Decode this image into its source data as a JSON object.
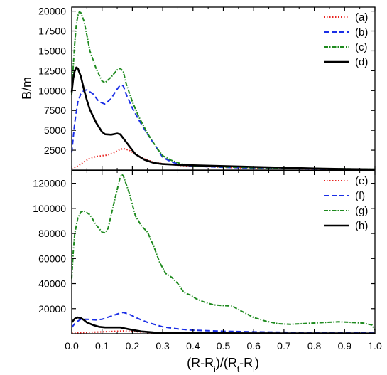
{
  "colors": {
    "red": "#e8231f",
    "blue": "#1a2ee6",
    "green": "#1e8a1e",
    "black": "#000000"
  },
  "chart_data": [
    {
      "type": "line",
      "xlabel": "",
      "ylabel": "B/m",
      "xlim": [
        0,
        1
      ],
      "ylim": [
        0,
        20500
      ],
      "yticks": [
        2500,
        5000,
        7500,
        10000,
        12500,
        15000,
        17500,
        20000
      ],
      "yticklabels": [
        "2500",
        "5000",
        "7500",
        "10000",
        "12500",
        "15000",
        "17500",
        "20000"
      ],
      "legend": "top-right",
      "series": [
        {
          "name": "(a)",
          "color": "red",
          "dash": "dotted",
          "points": [
            [
              0,
              150
            ],
            [
              0.02,
              500
            ],
            [
              0.04,
              1000
            ],
            [
              0.06,
              1500
            ],
            [
              0.08,
              1700
            ],
            [
              0.1,
              1800
            ],
            [
              0.12,
              1900
            ],
            [
              0.14,
              2200
            ],
            [
              0.16,
              2600
            ],
            [
              0.17,
              2700
            ],
            [
              0.19,
              2500
            ],
            [
              0.21,
              2000
            ],
            [
              0.24,
              1400
            ],
            [
              0.27,
              1000
            ],
            [
              0.3,
              800
            ],
            [
              0.35,
              600
            ],
            [
              0.4,
              500
            ],
            [
              0.5,
              350
            ],
            [
              0.6,
              250
            ],
            [
              0.7,
              200
            ],
            [
              0.8,
              150
            ],
            [
              0.9,
              100
            ],
            [
              1.0,
              80
            ]
          ]
        },
        {
          "name": "(b)",
          "color": "blue",
          "dash": "dashed",
          "points": [
            [
              0,
              2200
            ],
            [
              0.01,
              6000
            ],
            [
              0.02,
              8500
            ],
            [
              0.03,
              9600
            ],
            [
              0.04,
              10000
            ],
            [
              0.05,
              10100
            ],
            [
              0.07,
              9600
            ],
            [
              0.09,
              8600
            ],
            [
              0.11,
              8300
            ],
            [
              0.13,
              9000
            ],
            [
              0.15,
              10200
            ],
            [
              0.16,
              10700
            ],
            [
              0.17,
              10600
            ],
            [
              0.18,
              9500
            ],
            [
              0.2,
              7800
            ],
            [
              0.22,
              6400
            ],
            [
              0.25,
              4500
            ],
            [
              0.28,
              2800
            ],
            [
              0.3,
              1600
            ],
            [
              0.33,
              1000
            ],
            [
              0.36,
              700
            ],
            [
              0.4,
              500
            ],
            [
              0.5,
              350
            ],
            [
              0.6,
              250
            ],
            [
              0.7,
              200
            ],
            [
              0.8,
              150
            ],
            [
              0.9,
              100
            ],
            [
              1.0,
              80
            ]
          ]
        },
        {
          "name": "(c)",
          "color": "green",
          "dash": "dashdot",
          "points": [
            [
              0,
              9500
            ],
            [
              0.005,
              13000
            ],
            [
              0.01,
              16000
            ],
            [
              0.015,
              18200
            ],
            [
              0.02,
              19400
            ],
            [
              0.025,
              19900
            ],
            [
              0.03,
              19800
            ],
            [
              0.04,
              18800
            ],
            [
              0.05,
              17000
            ],
            [
              0.06,
              15000
            ],
            [
              0.08,
              12800
            ],
            [
              0.1,
              11200
            ],
            [
              0.11,
              11000
            ],
            [
              0.13,
              11700
            ],
            [
              0.15,
              12600
            ],
            [
              0.16,
              12800
            ],
            [
              0.17,
              12400
            ],
            [
              0.18,
              10800
            ],
            [
              0.2,
              8600
            ],
            [
              0.22,
              6800
            ],
            [
              0.25,
              4600
            ],
            [
              0.28,
              2800
            ],
            [
              0.3,
              1800
            ],
            [
              0.33,
              1200
            ],
            [
              0.36,
              800
            ],
            [
              0.4,
              550
            ],
            [
              0.5,
              400
            ],
            [
              0.6,
              300
            ],
            [
              0.7,
              250
            ],
            [
              0.8,
              200
            ],
            [
              0.9,
              150
            ],
            [
              1.0,
              100
            ]
          ]
        },
        {
          "name": "(d)",
          "color": "black",
          "dash": "solid",
          "points": [
            [
              0,
              9800
            ],
            [
              0.005,
              11500
            ],
            [
              0.01,
              12500
            ],
            [
              0.015,
              12900
            ],
            [
              0.02,
              12800
            ],
            [
              0.03,
              11800
            ],
            [
              0.04,
              10200
            ],
            [
              0.05,
              8800
            ],
            [
              0.06,
              7600
            ],
            [
              0.08,
              6000
            ],
            [
              0.1,
              4800
            ],
            [
              0.11,
              4500
            ],
            [
              0.13,
              4450
            ],
            [
              0.15,
              4600
            ],
            [
              0.16,
              4500
            ],
            [
              0.17,
              4000
            ],
            [
              0.19,
              3000
            ],
            [
              0.21,
              2000
            ],
            [
              0.24,
              1300
            ],
            [
              0.27,
              900
            ],
            [
              0.3,
              750
            ],
            [
              0.35,
              650
            ],
            [
              0.4,
              600
            ],
            [
              0.5,
              500
            ],
            [
              0.6,
              400
            ],
            [
              0.7,
              300
            ],
            [
              0.8,
              200
            ],
            [
              0.9,
              130
            ],
            [
              1.0,
              80
            ]
          ]
        }
      ]
    },
    {
      "type": "line",
      "xlabel": "(R-R_i)/(R_t-R_i)",
      "ylabel": "",
      "xlim": [
        0,
        1
      ],
      "ylim": [
        0,
        130000
      ],
      "xticks": [
        0,
        0.1,
        0.2,
        0.3,
        0.4,
        0.5,
        0.6,
        0.7,
        0.8,
        0.9,
        1.0
      ],
      "xticklabels": [
        "0.0",
        "0.1",
        "0.2",
        "0.3",
        "0.4",
        "0.5",
        "0.6",
        "0.7",
        "0.8",
        "0.9",
        "1.0"
      ],
      "yticks": [
        20000,
        40000,
        60000,
        80000,
        100000,
        120000
      ],
      "yticklabels": [
        "20000",
        "40000",
        "60000",
        "80000",
        "100000",
        "120000"
      ],
      "legend": "top-right",
      "series": [
        {
          "name": "(e)",
          "color": "red",
          "dash": "dotted",
          "points": [
            [
              0,
              500
            ],
            [
              0.05,
              1000
            ],
            [
              0.1,
              1500
            ],
            [
              0.15,
              2000
            ],
            [
              0.17,
              2200
            ],
            [
              0.2,
              1800
            ],
            [
              0.25,
              1000
            ],
            [
              0.3,
              700
            ],
            [
              0.4,
              500
            ],
            [
              0.5,
              400
            ],
            [
              0.6,
              300
            ],
            [
              0.7,
              250
            ],
            [
              0.8,
              200
            ],
            [
              0.9,
              200
            ],
            [
              1.0,
              100
            ]
          ]
        },
        {
          "name": "(f)",
          "color": "blue",
          "dash": "dashed",
          "points": [
            [
              0,
              5000
            ],
            [
              0.01,
              8000
            ],
            [
              0.02,
              10000
            ],
            [
              0.03,
              11500
            ],
            [
              0.05,
              11500
            ],
            [
              0.08,
              11000
            ],
            [
              0.1,
              11500
            ],
            [
              0.13,
              14000
            ],
            [
              0.16,
              16500
            ],
            [
              0.17,
              17000
            ],
            [
              0.19,
              15500
            ],
            [
              0.22,
              12000
            ],
            [
              0.25,
              9000
            ],
            [
              0.3,
              5500
            ],
            [
              0.35,
              3800
            ],
            [
              0.4,
              2800
            ],
            [
              0.5,
              2000
            ],
            [
              0.6,
              1500
            ],
            [
              0.7,
              1200
            ],
            [
              0.8,
              1000
            ],
            [
              0.9,
              800
            ],
            [
              1.0,
              500
            ]
          ]
        },
        {
          "name": "(g)",
          "color": "green",
          "dash": "dashdot",
          "points": [
            [
              0,
              44000
            ],
            [
              0.005,
              65000
            ],
            [
              0.01,
              80000
            ],
            [
              0.02,
              92000
            ],
            [
              0.03,
              97000
            ],
            [
              0.04,
              98000
            ],
            [
              0.06,
              95000
            ],
            [
              0.08,
              87000
            ],
            [
              0.1,
              81000
            ],
            [
              0.11,
              80500
            ],
            [
              0.12,
              84000
            ],
            [
              0.14,
              105000
            ],
            [
              0.16,
              125000
            ],
            [
              0.165,
              127000
            ],
            [
              0.17,
              126000
            ],
            [
              0.19,
              112000
            ],
            [
              0.21,
              94000
            ],
            [
              0.23,
              86000
            ],
            [
              0.25,
              81000
            ],
            [
              0.27,
              70000
            ],
            [
              0.29,
              57000
            ],
            [
              0.31,
              48000
            ],
            [
              0.33,
              45000
            ],
            [
              0.35,
              40000
            ],
            [
              0.37,
              33000
            ],
            [
              0.39,
              31000
            ],
            [
              0.41,
              28000
            ],
            [
              0.44,
              25000
            ],
            [
              0.47,
              23000
            ],
            [
              0.5,
              22500
            ],
            [
              0.53,
              22000
            ],
            [
              0.56,
              18000
            ],
            [
              0.6,
              13000
            ],
            [
              0.64,
              10000
            ],
            [
              0.68,
              8000
            ],
            [
              0.72,
              7500
            ],
            [
              0.76,
              8000
            ],
            [
              0.8,
              8500
            ],
            [
              0.84,
              9000
            ],
            [
              0.88,
              9500
            ],
            [
              0.92,
              9000
            ],
            [
              0.96,
              8500
            ],
            [
              0.99,
              7000
            ],
            [
              1.0,
              3000
            ]
          ]
        },
        {
          "name": "(h)",
          "color": "black",
          "dash": "solid",
          "points": [
            [
              0,
              9000
            ],
            [
              0.01,
              12000
            ],
            [
              0.02,
              13000
            ],
            [
              0.03,
              12500
            ],
            [
              0.04,
              11000
            ],
            [
              0.05,
              9000
            ],
            [
              0.07,
              7000
            ],
            [
              0.09,
              5500
            ],
            [
              0.11,
              5000
            ],
            [
              0.14,
              5000
            ],
            [
              0.16,
              5000
            ],
            [
              0.17,
              4500
            ],
            [
              0.2,
              3000
            ],
            [
              0.23,
              1800
            ],
            [
              0.27,
              1000
            ],
            [
              0.3,
              700
            ],
            [
              0.4,
              500
            ],
            [
              0.5,
              400
            ],
            [
              0.6,
              350
            ],
            [
              0.7,
              300
            ],
            [
              0.8,
              250
            ],
            [
              0.9,
              200
            ],
            [
              1.0,
              150
            ]
          ]
        }
      ]
    }
  ]
}
